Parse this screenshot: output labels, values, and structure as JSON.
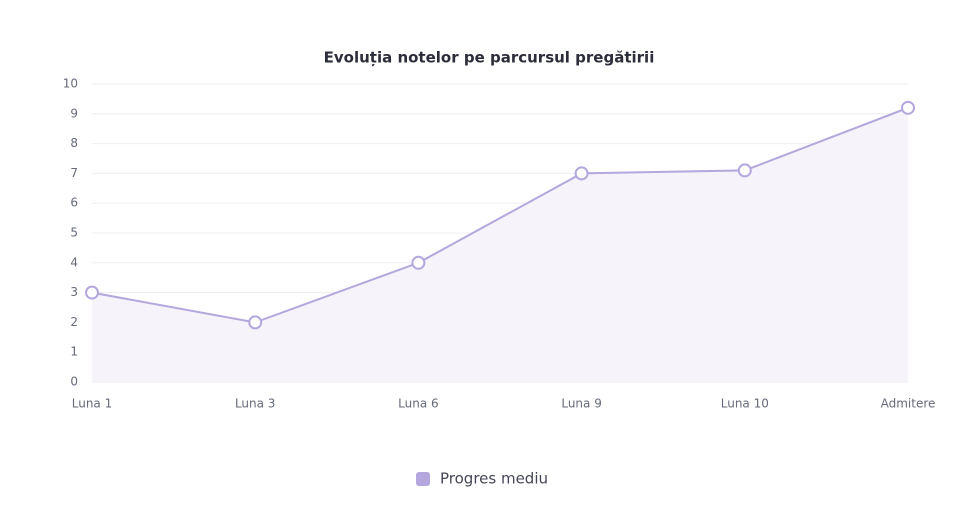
{
  "chart_data": {
    "type": "line",
    "title": "Evoluția notelor pe parcursul pregătirii",
    "categories": [
      "Luna 1",
      "Luna 3",
      "Luna 6",
      "Luna 9",
      "Luna 10",
      "Admitere"
    ],
    "series": [
      {
        "name": "Progres mediu",
        "color": "#b3a7dd",
        "values": [
          3,
          2,
          4,
          7,
          7.1,
          9.2
        ]
      }
    ],
    "area_fill": "#f6f3fb",
    "ylim": [
      0,
      10
    ],
    "yticks": [
      0,
      1,
      2,
      3,
      4,
      5,
      6,
      7,
      8,
      9,
      10
    ],
    "grid": true,
    "legend": "bottom"
  }
}
